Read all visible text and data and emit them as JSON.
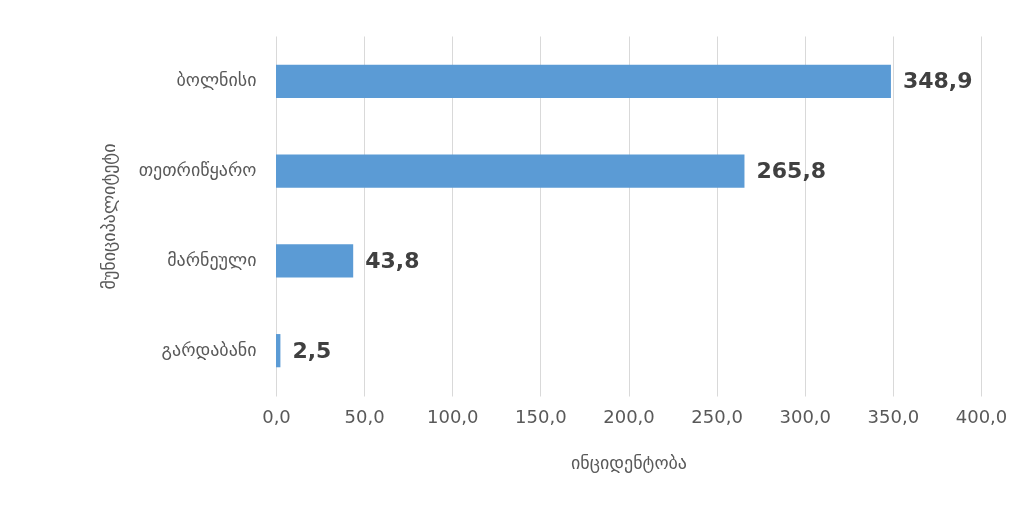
{
  "chart_data": {
    "type": "bar",
    "orientation": "horizontal",
    "xlabel": "ინციდენტობა",
    "ylabel": "მუნიციპალიტეტი",
    "categories": [
      "ბოლნისი",
      "თეთრიწყარო",
      "მარნეული",
      "გარდაბანი"
    ],
    "values": [
      348.9,
      265.8,
      43.8,
      2.5
    ],
    "value_labels": [
      "348,9",
      "265,8",
      "43,8",
      "2,5"
    ],
    "color": "#5b9bd5",
    "xlim": [
      0,
      400
    ],
    "xticks": [
      {
        "value": 0,
        "label": "0,0"
      },
      {
        "value": 50,
        "label": "50,0"
      },
      {
        "value": 100,
        "label": "100,0"
      },
      {
        "value": 150,
        "label": "150,0"
      },
      {
        "value": 200,
        "label": "200,0"
      },
      {
        "value": 250,
        "label": "250,0"
      },
      {
        "value": 300,
        "label": "300,0"
      },
      {
        "value": 350,
        "label": "350,0"
      },
      {
        "value": 400,
        "label": "400,0"
      }
    ],
    "grid": "x"
  }
}
